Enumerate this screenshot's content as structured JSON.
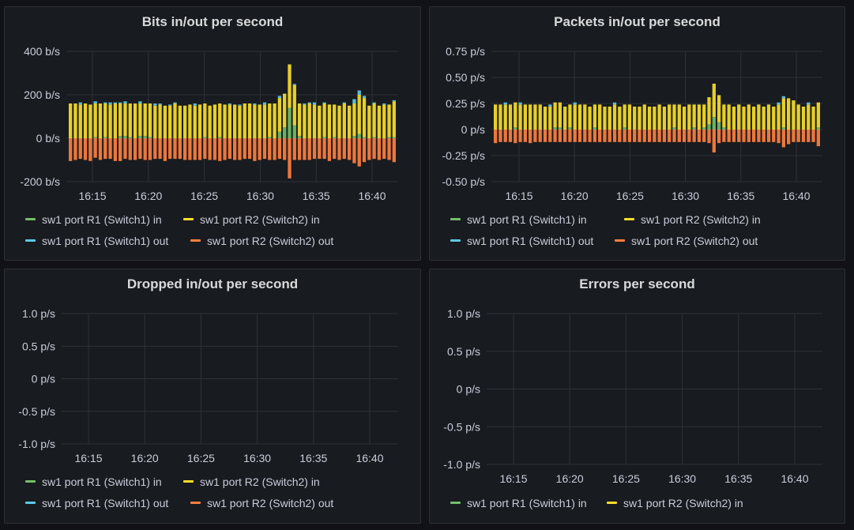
{
  "panels": {
    "bits": {
      "title": "Bits in/out per second"
    },
    "packets": {
      "title": "Packets in/out per second"
    },
    "dropped": {
      "title": "Dropped in/out per second"
    },
    "errors": {
      "title": "Errors per second"
    }
  },
  "legend": {
    "r1_in": "sw1 port R1 (Switch1) in",
    "r2_in": "sw1 port R2 (Switch2) in",
    "r1_out": "sw1 port R1 (Switch1) out",
    "r2_out": "sw1 port R2 (Switch2) out"
  },
  "colors": {
    "r1_in": "#73bf69",
    "r2_in": "#fade2a",
    "r1_out": "#5ec9e5",
    "r2_out": "#ff7f3f"
  },
  "chart_data": [
    {
      "type": "bar",
      "title": "Bits in/out per second",
      "stacked": true,
      "x_ticks": [
        "16:15",
        "16:20",
        "16:25",
        "16:30",
        "16:35",
        "16:40"
      ],
      "y_ticks": [
        "400 b/s",
        "200 b/s",
        "0 b/s",
        "-200 b/s"
      ],
      "ylim": [
        -200,
        400
      ],
      "grid": true,
      "legend": "bottom",
      "series": [
        {
          "name": "sw1 port R1 (Switch1) in",
          "values": [
            0,
            0,
            0,
            0,
            0,
            5,
            0,
            5,
            0,
            0,
            10,
            10,
            5,
            0,
            10,
            10,
            5,
            0,
            0,
            0,
            0,
            0,
            0,
            0,
            0,
            0,
            0,
            5,
            0,
            0,
            5,
            0,
            0,
            0,
            0,
            0,
            0,
            0,
            0,
            0,
            5,
            0,
            30,
            50,
            140,
            60,
            10,
            0,
            0,
            0,
            0,
            5,
            0,
            5,
            0,
            0,
            0,
            10,
            20,
            5,
            0,
            5,
            0,
            0,
            5,
            5
          ]
        },
        {
          "name": "sw1 port R2 (Switch2) in",
          "values": [
            160,
            160,
            155,
            160,
            155,
            155,
            160,
            155,
            155,
            160,
            150,
            150,
            155,
            160,
            150,
            150,
            155,
            150,
            155,
            150,
            150,
            160,
            150,
            150,
            155,
            150,
            155,
            155,
            150,
            155,
            155,
            155,
            155,
            155,
            150,
            160,
            160,
            155,
            155,
            155,
            155,
            160,
            155,
            155,
            200,
            185,
            150,
            155,
            160,
            155,
            150,
            155,
            155,
            150,
            150,
            160,
            150,
            150,
            180,
            180,
            150,
            155,
            150,
            155,
            150,
            165
          ]
        },
        {
          "name": "sw1 port R1 (Switch1) out",
          "values": [
            0,
            0,
            10,
            0,
            0,
            10,
            0,
            5,
            10,
            5,
            5,
            10,
            0,
            0,
            10,
            0,
            0,
            10,
            5,
            0,
            5,
            5,
            0,
            0,
            0,
            10,
            0,
            0,
            0,
            0,
            0,
            0,
            5,
            0,
            5,
            0,
            0,
            5,
            0,
            10,
            0,
            0,
            10,
            0,
            0,
            5,
            0,
            5,
            5,
            10,
            0,
            5,
            0,
            0,
            0,
            5,
            0,
            20,
            20,
            10,
            0,
            5,
            0,
            5,
            0,
            5
          ]
        },
        {
          "name": "sw1 port R2 (Switch2) out",
          "values": [
            -105,
            -100,
            -95,
            -100,
            -105,
            -90,
            -100,
            -95,
            -95,
            -105,
            -105,
            -95,
            -100,
            -100,
            -95,
            -100,
            -100,
            -95,
            -95,
            -105,
            -95,
            -95,
            -95,
            -100,
            -100,
            -100,
            -100,
            -95,
            -100,
            -100,
            -105,
            -100,
            -95,
            -100,
            -100,
            -95,
            -95,
            -105,
            -100,
            -95,
            -100,
            -100,
            -95,
            -100,
            -185,
            -100,
            -100,
            -100,
            -100,
            -95,
            -95,
            -95,
            -105,
            -95,
            -100,
            -95,
            -100,
            -115,
            -130,
            -110,
            -100,
            -95,
            -100,
            -95,
            -100,
            -110
          ]
        }
      ]
    },
    {
      "type": "bar",
      "title": "Packets in/out per second",
      "stacked": true,
      "x_ticks": [
        "16:15",
        "16:20",
        "16:25",
        "16:30",
        "16:35",
        "16:40"
      ],
      "y_ticks": [
        "0.75 p/s",
        "0.50 p/s",
        "0.25 p/s",
        "0 p/s",
        "-0.25 p/s",
        "-0.50 p/s"
      ],
      "ylim": [
        -0.5,
        0.75
      ],
      "grid": true,
      "legend": "bottom",
      "series": [
        {
          "name": "sw1 port R1 (Switch1) in",
          "values": [
            0,
            0,
            0,
            0,
            0.02,
            0,
            0,
            0,
            0,
            0,
            0,
            0,
            0.02,
            0.02,
            0,
            0.02,
            0,
            0,
            0,
            0,
            0.02,
            0,
            0,
            0,
            0,
            0,
            0.02,
            0,
            0,
            0,
            0,
            0,
            0,
            0,
            0,
            0,
            0.02,
            0,
            0,
            0,
            0.02,
            0,
            0.02,
            0.05,
            0.12,
            0.07,
            0.02,
            0,
            0,
            0,
            0,
            0,
            0,
            0,
            0,
            0,
            0,
            0,
            0.02,
            0,
            0,
            0,
            0,
            0,
            0,
            0.02
          ]
        },
        {
          "name": "sw1 port R2 (Switch2) in",
          "values": [
            0.24,
            0.24,
            0.24,
            0.24,
            0.24,
            0.24,
            0.24,
            0.24,
            0.24,
            0.24,
            0.22,
            0.22,
            0.24,
            0.24,
            0.22,
            0.22,
            0.24,
            0.24,
            0.24,
            0.22,
            0.22,
            0.24,
            0.22,
            0.22,
            0.24,
            0.22,
            0.22,
            0.24,
            0.22,
            0.22,
            0.24,
            0.22,
            0.22,
            0.24,
            0.22,
            0.24,
            0.22,
            0.24,
            0.22,
            0.24,
            0.22,
            0.24,
            0.22,
            0.26,
            0.32,
            0.26,
            0.22,
            0.24,
            0.22,
            0.24,
            0.22,
            0.24,
            0.22,
            0.24,
            0.22,
            0.24,
            0.22,
            0.24,
            0.28,
            0.3,
            0.28,
            0.24,
            0.22,
            0.24,
            0.22,
            0.24
          ]
        },
        {
          "name": "sw1 port R1 (Switch1) out",
          "values": [
            0,
            0,
            0.02,
            0,
            0,
            0.02,
            0,
            0,
            0,
            0,
            0,
            0.02,
            0,
            0,
            0,
            0,
            0.02,
            0,
            0,
            0,
            0,
            0,
            0,
            0,
            0.02,
            0,
            0,
            0,
            0,
            0,
            0,
            0,
            0,
            0,
            0,
            0,
            0,
            0,
            0,
            0,
            0,
            0,
            0,
            0,
            0,
            0,
            0,
            0,
            0,
            0,
            0,
            0,
            0,
            0,
            0,
            0,
            0,
            0.02,
            0.02,
            0,
            0,
            0,
            0,
            0.02,
            0,
            0
          ]
        },
        {
          "name": "sw1 port R2 (Switch2) out",
          "values": [
            -0.13,
            -0.12,
            -0.12,
            -0.12,
            -0.13,
            -0.12,
            -0.12,
            -0.13,
            -0.12,
            -0.12,
            -0.12,
            -0.12,
            -0.12,
            -0.12,
            -0.12,
            -0.12,
            -0.12,
            -0.12,
            -0.12,
            -0.12,
            -0.12,
            -0.12,
            -0.12,
            -0.12,
            -0.12,
            -0.12,
            -0.12,
            -0.12,
            -0.12,
            -0.12,
            -0.12,
            -0.12,
            -0.12,
            -0.12,
            -0.12,
            -0.12,
            -0.12,
            -0.12,
            -0.12,
            -0.12,
            -0.12,
            -0.12,
            -0.12,
            -0.13,
            -0.22,
            -0.13,
            -0.12,
            -0.12,
            -0.12,
            -0.12,
            -0.12,
            -0.12,
            -0.12,
            -0.12,
            -0.12,
            -0.12,
            -0.12,
            -0.13,
            -0.17,
            -0.14,
            -0.12,
            -0.12,
            -0.12,
            -0.12,
            -0.12,
            -0.16
          ]
        }
      ]
    },
    {
      "type": "bar",
      "title": "Dropped in/out per second",
      "x_ticks": [
        "16:15",
        "16:20",
        "16:25",
        "16:30",
        "16:35",
        "16:40"
      ],
      "y_ticks": [
        "1.0 p/s",
        "0.5 p/s",
        "0 p/s",
        "-0.5 p/s",
        "-1.0 p/s"
      ],
      "ylim": [
        -1.0,
        1.0
      ],
      "grid": true,
      "legend": "bottom",
      "series": []
    },
    {
      "type": "bar",
      "title": "Errors per second",
      "x_ticks": [
        "16:15",
        "16:20",
        "16:25",
        "16:30",
        "16:35",
        "16:40"
      ],
      "y_ticks": [
        "1.0 p/s",
        "0.5 p/s",
        "0 p/s",
        "-0.5 p/s",
        "-1.0 p/s"
      ],
      "ylim": [
        -1.0,
        1.0
      ],
      "grid": true,
      "legend": "bottom",
      "series": []
    }
  ]
}
